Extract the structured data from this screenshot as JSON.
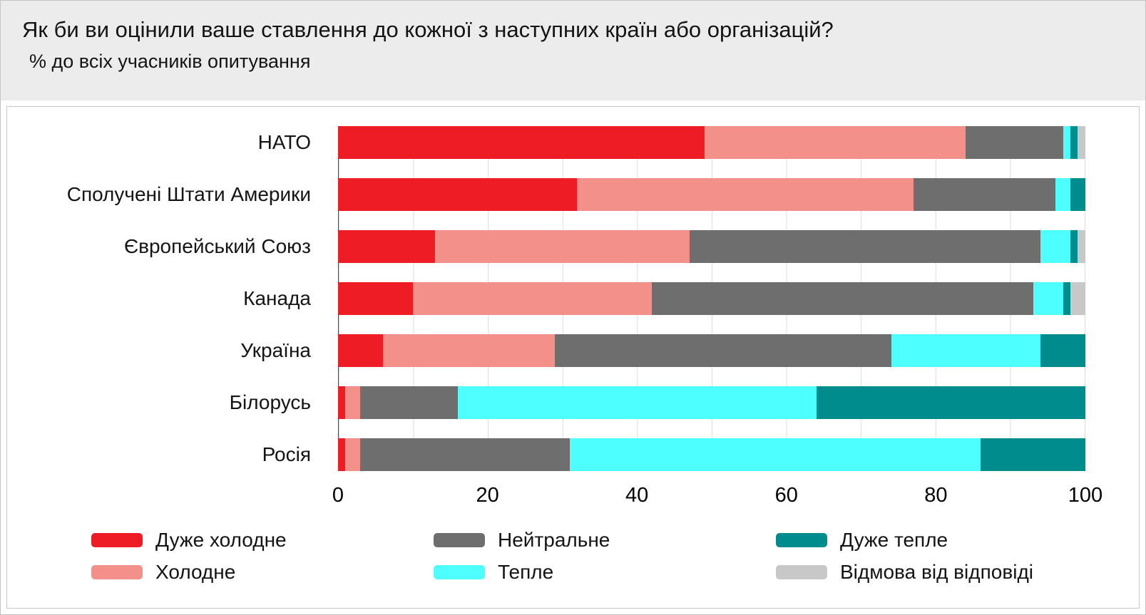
{
  "chart_data": {
    "type": "bar",
    "stacked": true,
    "orientation": "horizontal",
    "title": "Як би ви оцінили ваше ставлення до кожної з наступних країн або організацій?",
    "subtitle": "% до всіх учасників опитування",
    "categories": [
      "НАТО",
      "Сполучені Штати Америки",
      "Європейський Союз",
      "Канада",
      "Україна",
      "Білорусь",
      "Росія"
    ],
    "series": [
      {
        "name": "Дуже холодне",
        "color": "#ee1c25",
        "values": [
          49,
          32,
          13,
          10,
          6,
          1,
          1
        ]
      },
      {
        "name": "Холодне",
        "color": "#f4908a",
        "values": [
          35,
          45,
          34,
          32,
          23,
          2,
          2
        ]
      },
      {
        "name": "Нейтральне",
        "color": "#6e6e6e",
        "values": [
          13,
          19,
          47,
          51,
          45,
          13,
          28
        ]
      },
      {
        "name": "Тепле",
        "color": "#4dffff",
        "values": [
          1,
          2,
          4,
          4,
          20,
          48,
          55
        ]
      },
      {
        "name": "Дуже тепле",
        "color": "#008c8c",
        "values": [
          1,
          2,
          1,
          1,
          6,
          36,
          14
        ]
      },
      {
        "name": "Відмова від відповіді",
        "color": "#c8c8c8",
        "values": [
          1,
          0,
          1,
          2,
          0,
          0,
          0
        ]
      }
    ],
    "xlabel": "",
    "ylabel": "",
    "xlim": [
      0,
      100
    ],
    "xticks": [
      0,
      20,
      40,
      60,
      80,
      100
    ],
    "grid": "vertical, every 10 units",
    "legend_position": "bottom"
  }
}
